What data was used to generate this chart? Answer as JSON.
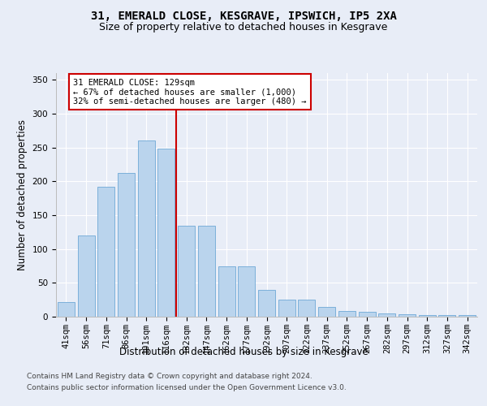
{
  "title_line1": "31, EMERALD CLOSE, KESGRAVE, IPSWICH, IP5 2XA",
  "title_line2": "Size of property relative to detached houses in Kesgrave",
  "xlabel": "Distribution of detached houses by size in Kesgrave",
  "ylabel": "Number of detached properties",
  "categories": [
    "41sqm",
    "56sqm",
    "71sqm",
    "86sqm",
    "101sqm",
    "116sqm",
    "132sqm",
    "147sqm",
    "162sqm",
    "177sqm",
    "192sqm",
    "207sqm",
    "222sqm",
    "237sqm",
    "252sqm",
    "267sqm",
    "282sqm",
    "297sqm",
    "312sqm",
    "327sqm",
    "342sqm"
  ],
  "values": [
    22,
    120,
    192,
    213,
    260,
    248,
    135,
    135,
    75,
    75,
    40,
    25,
    25,
    14,
    8,
    7,
    5,
    4,
    2,
    2,
    3
  ],
  "bar_color": "#bad4ed",
  "bar_edge_color": "#6fa8d6",
  "vline_index": 6,
  "vline_color": "#cc0000",
  "annotation_text": "31 EMERALD CLOSE: 129sqm\n← 67% of detached houses are smaller (1,000)\n32% of semi-detached houses are larger (480) →",
  "annotation_box_facecolor": "#ffffff",
  "annotation_box_edgecolor": "#cc0000",
  "ylim": [
    0,
    360
  ],
  "yticks": [
    0,
    50,
    100,
    150,
    200,
    250,
    300,
    350
  ],
  "footer_line1": "Contains HM Land Registry data © Crown copyright and database right 2024.",
  "footer_line2": "Contains public sector information licensed under the Open Government Licence v3.0.",
  "bg_color": "#e8edf7",
  "grid_color": "#ffffff",
  "title_fontsize": 10,
  "subtitle_fontsize": 9,
  "axis_label_fontsize": 8.5,
  "tick_fontsize": 7.5,
  "annotation_fontsize": 7.5,
  "footer_fontsize": 6.5
}
